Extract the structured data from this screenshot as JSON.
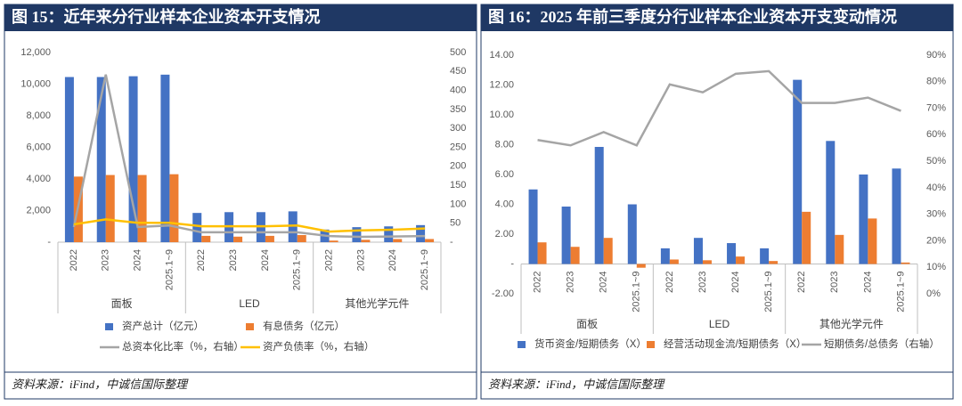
{
  "chart_data": [
    {
      "type": "combo",
      "title": "图 15：近年来分行业样本企业资本开支情况",
      "source": "资料来源：iFind，中诚信国际整理",
      "categories": [
        "2022",
        "2023",
        "2024",
        "2025.1~9",
        "2022",
        "2023",
        "2024",
        "2025.1~9",
        "2022",
        "2023",
        "2024",
        "2025.1~9"
      ],
      "groups": [
        "面板",
        "LED",
        "其他光学元件"
      ],
      "series": [
        {
          "name": "资产总计（亿元）",
          "color": "#4472c4",
          "values": [
            10450,
            10450,
            10500,
            10600,
            1850,
            1900,
            1900,
            1950,
            800,
            950,
            1000,
            1080
          ]
        },
        {
          "name": "有息债务（亿元）",
          "color": "#ed7d31",
          "values": [
            4150,
            4250,
            4250,
            4300,
            400,
            350,
            400,
            450,
            100,
            150,
            200,
            200
          ]
        },
        {
          "name": "总资本化比率（%，右轴）",
          "color": "#a5a5a5",
          "axis": "y2",
          "values": [
            40,
            442,
            40,
            44,
            26,
            26,
            26,
            26,
            16,
            14,
            15,
            16
          ]
        },
        {
          "name": "资产负债率（%，右轴）",
          "color": "#ffc000",
          "axis": "y2",
          "values": [
            47,
            60,
            51,
            51,
            42,
            42,
            42,
            44,
            28,
            31,
            33,
            36
          ]
        }
      ],
      "ylim": [
        0,
        12000
      ],
      "yticks": [
        {
          "value": 0,
          "label": "-"
        },
        {
          "value": 2000,
          "label": "2,000"
        },
        {
          "value": 4000,
          "label": "4,000"
        },
        {
          "value": 6000,
          "label": "6,000"
        },
        {
          "value": 8000,
          "label": "8,000"
        },
        {
          "value": 10000,
          "label": "10,000"
        },
        {
          "value": 12000,
          "label": "12,000"
        }
      ],
      "y2lim": [
        0,
        500
      ],
      "y2ticks": [
        {
          "value": 0,
          "label": "-"
        },
        50,
        100,
        150,
        200,
        250,
        300,
        350,
        400,
        450,
        500
      ]
    },
    {
      "type": "combo",
      "title": "图 16：2025 年前三季度分行业样本企业资本开支变动情况",
      "source": "资料来源：iFind，中诚信国际整理",
      "categories": [
        "2022",
        "2023",
        "2024",
        "2025.1~9",
        "2022",
        "2023",
        "2024",
        "2025.1~9",
        "2022",
        "2023",
        "2024",
        "2025.1~9"
      ],
      "groups": [
        "面板",
        "LED",
        "其他光学元件"
      ],
      "series": [
        {
          "name": "货币资金/短期债务（X）",
          "color": "#4472c4",
          "values": [
            5.0,
            3.85,
            7.85,
            4.0,
            1.05,
            1.75,
            1.4,
            1.05,
            12.35,
            8.25,
            6.0,
            6.4
          ]
        },
        {
          "name": "经营活动现金流/短期债务（X）",
          "color": "#ed7d31",
          "values": [
            1.45,
            1.15,
            1.75,
            -0.25,
            0.3,
            0.25,
            0.5,
            0.2,
            3.5,
            1.95,
            3.05,
            0.1
          ]
        },
        {
          "name": "短期债务/总债务（右轴）",
          "color": "#a5a5a5",
          "axis": "y2",
          "values": [
            58,
            56,
            61,
            56,
            79,
            76,
            83,
            84,
            72,
            72,
            74,
            69
          ]
        }
      ],
      "ylim": [
        -2,
        14
      ],
      "yticks": [
        {
          "value": -2,
          "label": "-2.00"
        },
        {
          "value": 0,
          "label": "-"
        },
        {
          "value": 2,
          "label": "2.00"
        },
        {
          "value": 4,
          "label": "4.00"
        },
        {
          "value": 6,
          "label": "6.00"
        },
        {
          "value": 8,
          "label": "8.00"
        },
        {
          "value": 10,
          "label": "10.00"
        },
        {
          "value": 12,
          "label": "12.00"
        },
        {
          "value": 14,
          "label": "14.00"
        }
      ],
      "y2lim": [
        0,
        90
      ],
      "y2ticks": [
        {
          "value": 0,
          "label": "0%"
        },
        {
          "value": 10,
          "label": "10%"
        },
        {
          "value": 20,
          "label": "20%"
        },
        {
          "value": 30,
          "label": "30%"
        },
        {
          "value": 40,
          "label": "40%"
        },
        {
          "value": 50,
          "label": "50%"
        },
        {
          "value": 60,
          "label": "60%"
        },
        {
          "value": 70,
          "label": "70%"
        },
        {
          "value": 80,
          "label": "80%"
        },
        {
          "value": 90,
          "label": "90%"
        }
      ]
    }
  ]
}
